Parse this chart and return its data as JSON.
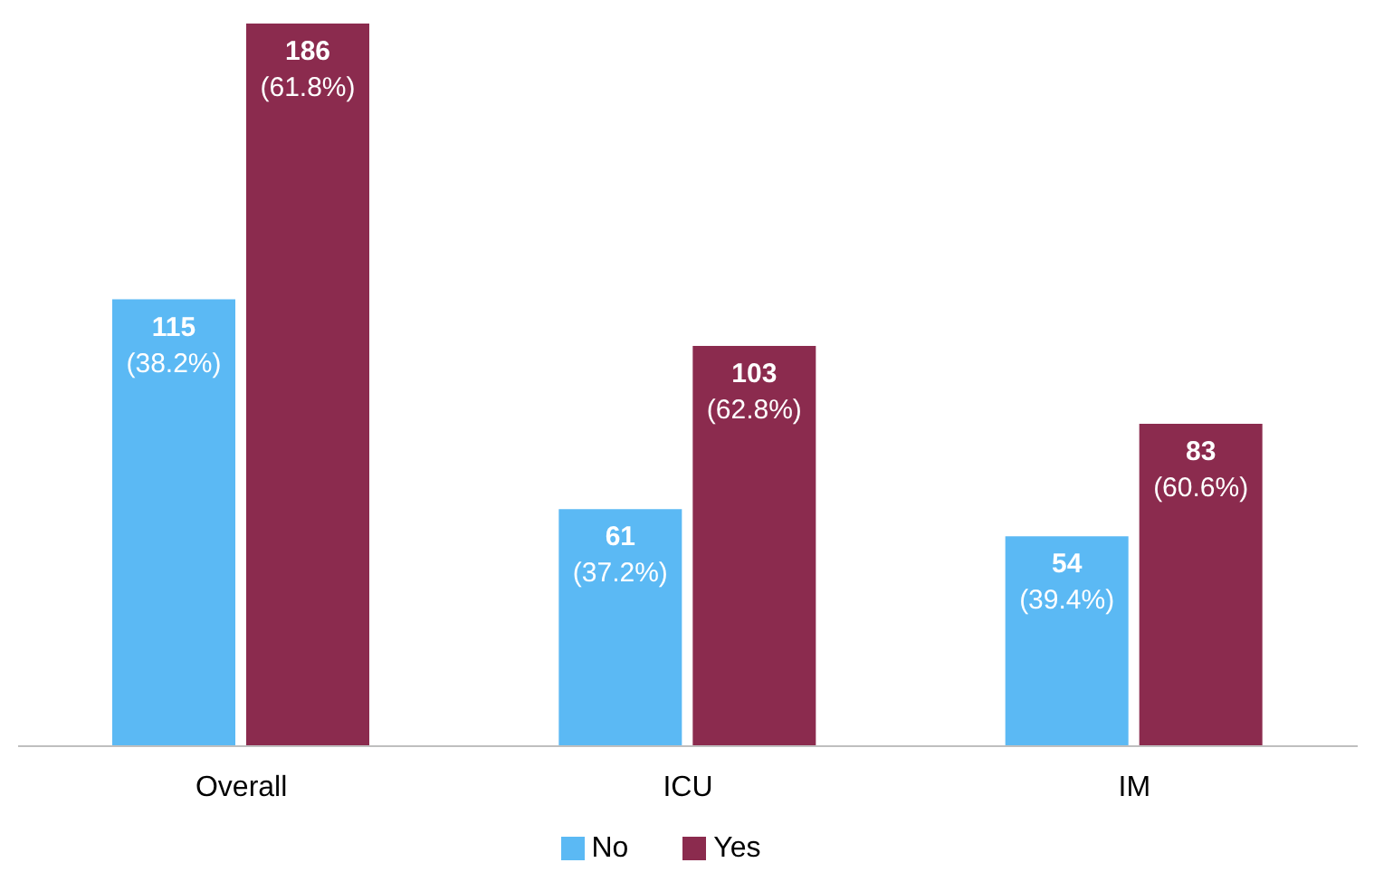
{
  "chart_data": {
    "type": "bar",
    "categories": [
      "Overall",
      "ICU",
      "IM"
    ],
    "series": [
      {
        "name": "No",
        "color": "#5bb9f4",
        "values": [
          115,
          61,
          54
        ],
        "value_labels": [
          "115\n(38.2%)",
          "61\n(37.2%)",
          "54\n(39.4%)"
        ]
      },
      {
        "name": "Yes",
        "color": "#8b2b4e",
        "values": [
          186,
          103,
          83
        ],
        "value_labels": [
          "186\n(61.8%)",
          "103\n(62.8%)",
          "83\n(60.6%)"
        ]
      }
    ],
    "legend": "bottom",
    "grid": false
  }
}
